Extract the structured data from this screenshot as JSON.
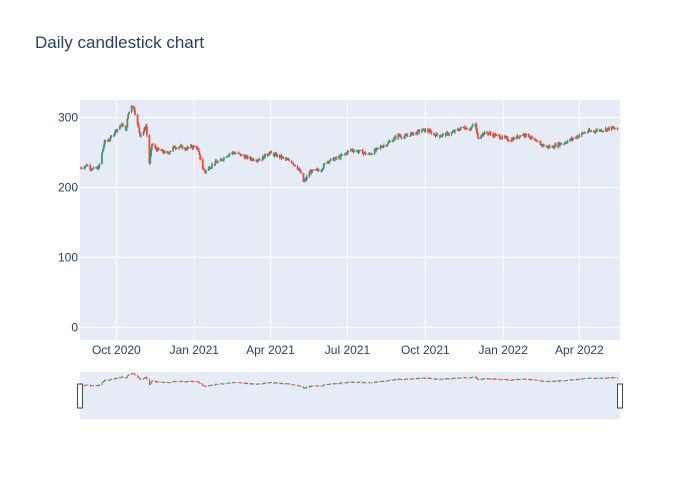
{
  "chart_data": {
    "type": "candlestick",
    "title": "Daily candlestick chart",
    "xlabel": "",
    "ylabel": "",
    "ylim": [
      -18,
      325
    ],
    "xlim": [
      "2020-08-19",
      "2022-05-19"
    ],
    "y_ticks": [
      0,
      100,
      200,
      300
    ],
    "x_ticks": [
      {
        "date": "2020-10-01",
        "label": "Oct 2020"
      },
      {
        "date": "2021-01-01",
        "label": "Jan 2021"
      },
      {
        "date": "2021-04-01",
        "label": "Apr 2021"
      },
      {
        "date": "2021-07-01",
        "label": "Jul 2021"
      },
      {
        "date": "2021-10-01",
        "label": "Oct 2021"
      },
      {
        "date": "2022-01-01",
        "label": "Jan 2022"
      },
      {
        "date": "2022-04-01",
        "label": "Apr 2022"
      }
    ],
    "grid": true,
    "range_slider": true,
    "colors": {
      "increasing": "#3d9970",
      "decreasing": "#ff4136",
      "plot_bg": "#e5ecf6",
      "grid": "#ffffff",
      "text": "#2a3f5f"
    },
    "close_trend": [
      [
        "2020-08-20",
        228
      ],
      [
        "2020-08-27",
        232
      ],
      [
        "2020-09-03",
        226
      ],
      [
        "2020-09-10",
        228
      ],
      [
        "2020-09-17",
        265
      ],
      [
        "2020-09-24",
        270
      ],
      [
        "2020-10-01",
        283
      ],
      [
        "2020-10-08",
        290
      ],
      [
        "2020-10-12",
        280
      ],
      [
        "2020-10-15",
        305
      ],
      [
        "2020-10-19",
        318
      ],
      [
        "2020-10-22",
        312
      ],
      [
        "2020-10-26",
        290
      ],
      [
        "2020-10-29",
        275
      ],
      [
        "2020-11-02",
        280
      ],
      [
        "2020-11-05",
        288
      ],
      [
        "2020-11-09",
        235
      ],
      [
        "2020-11-12",
        262
      ],
      [
        "2020-11-16",
        255
      ],
      [
        "2020-11-23",
        252
      ],
      [
        "2020-11-30",
        248
      ],
      [
        "2020-12-07",
        257
      ],
      [
        "2020-12-14",
        259
      ],
      [
        "2020-12-21",
        255
      ],
      [
        "2020-12-28",
        258
      ],
      [
        "2021-01-04",
        258
      ],
      [
        "2021-01-07",
        245
      ],
      [
        "2021-01-11",
        228
      ],
      [
        "2021-01-14",
        222
      ],
      [
        "2021-01-18",
        228
      ],
      [
        "2021-01-25",
        235
      ],
      [
        "2021-02-01",
        238
      ],
      [
        "2021-02-08",
        246
      ],
      [
        "2021-02-15",
        250
      ],
      [
        "2021-02-22",
        248
      ],
      [
        "2021-03-01",
        244
      ],
      [
        "2021-03-08",
        241
      ],
      [
        "2021-03-15",
        240
      ],
      [
        "2021-03-22",
        241
      ],
      [
        "2021-03-29",
        250
      ],
      [
        "2021-04-05",
        247
      ],
      [
        "2021-04-12",
        244
      ],
      [
        "2021-04-19",
        240
      ],
      [
        "2021-04-26",
        237
      ],
      [
        "2021-05-03",
        228
      ],
      [
        "2021-05-06",
        222
      ],
      [
        "2021-05-10",
        208
      ],
      [
        "2021-05-13",
        212
      ],
      [
        "2021-05-17",
        222
      ],
      [
        "2021-05-24",
        224
      ],
      [
        "2021-05-31",
        226
      ],
      [
        "2021-06-07",
        238
      ],
      [
        "2021-06-14",
        240
      ],
      [
        "2021-06-21",
        243
      ],
      [
        "2021-06-28",
        248
      ],
      [
        "2021-07-05",
        254
      ],
      [
        "2021-07-12",
        252
      ],
      [
        "2021-07-19",
        250
      ],
      [
        "2021-07-26",
        247
      ],
      [
        "2021-08-02",
        252
      ],
      [
        "2021-08-09",
        258
      ],
      [
        "2021-08-16",
        262
      ],
      [
        "2021-08-23",
        268
      ],
      [
        "2021-08-30",
        275
      ],
      [
        "2021-09-06",
        272
      ],
      [
        "2021-09-13",
        276
      ],
      [
        "2021-09-20",
        278
      ],
      [
        "2021-09-27",
        282
      ],
      [
        "2021-10-04",
        281
      ],
      [
        "2021-10-11",
        276
      ],
      [
        "2021-10-18",
        274
      ],
      [
        "2021-10-25",
        276
      ],
      [
        "2021-11-01",
        278
      ],
      [
        "2021-11-08",
        282
      ],
      [
        "2021-11-15",
        286
      ],
      [
        "2021-11-22",
        284
      ],
      [
        "2021-11-29",
        290
      ],
      [
        "2021-12-02",
        270
      ],
      [
        "2021-12-06",
        276
      ],
      [
        "2021-12-13",
        278
      ],
      [
        "2021-12-20",
        275
      ],
      [
        "2021-12-27",
        273
      ],
      [
        "2022-01-03",
        270
      ],
      [
        "2022-01-10",
        268
      ],
      [
        "2022-01-17",
        272
      ],
      [
        "2022-01-24",
        276
      ],
      [
        "2022-01-31",
        274
      ],
      [
        "2022-02-07",
        266
      ],
      [
        "2022-02-14",
        262
      ],
      [
        "2022-02-21",
        258
      ],
      [
        "2022-02-28",
        258
      ],
      [
        "2022-03-07",
        262
      ],
      [
        "2022-03-14",
        264
      ],
      [
        "2022-03-21",
        268
      ],
      [
        "2022-03-28",
        272
      ],
      [
        "2022-04-04",
        277
      ],
      [
        "2022-04-11",
        280
      ],
      [
        "2022-04-18",
        281
      ],
      [
        "2022-04-25",
        282
      ],
      [
        "2022-05-02",
        283
      ],
      [
        "2022-05-09",
        285
      ],
      [
        "2022-05-16",
        283
      ]
    ]
  }
}
